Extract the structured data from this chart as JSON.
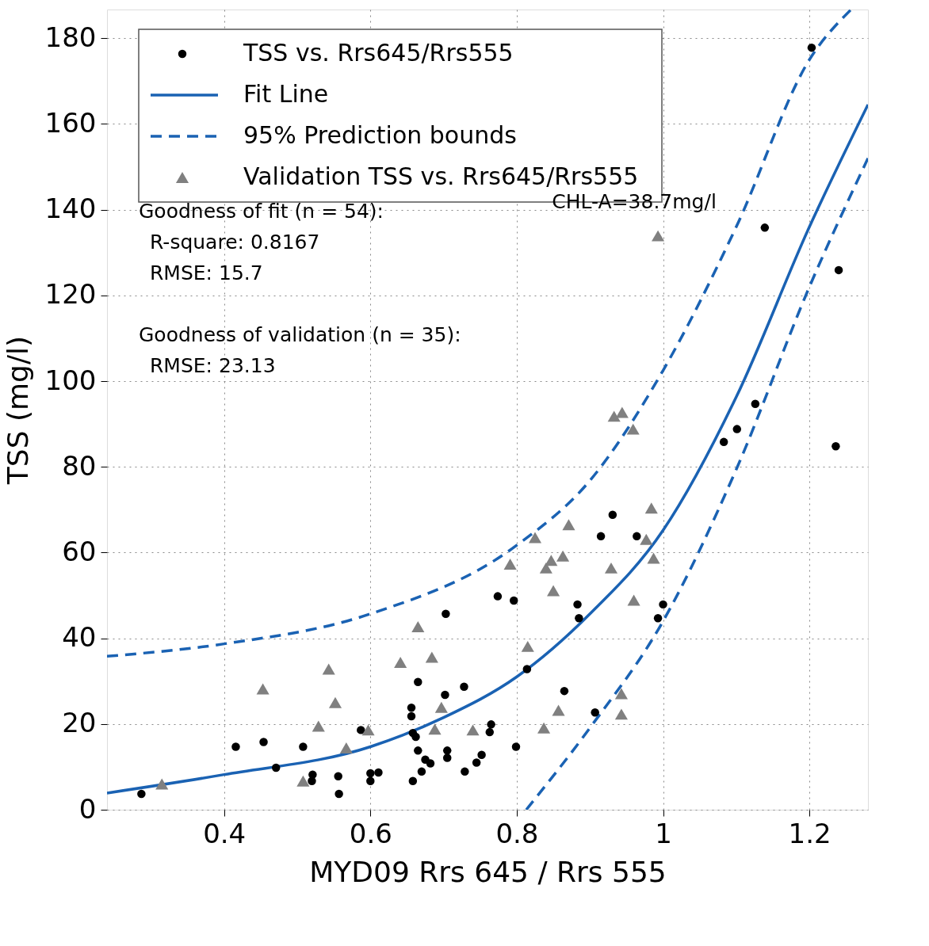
{
  "chart_data": {
    "type": "scatter",
    "xlabel": "MYD09 Rrs 645 / Rrs 555",
    "ylabel": "TSS (mg/l)",
    "xlim": [
      0.24,
      1.28
    ],
    "ylim": [
      0,
      186.7
    ],
    "xticks": [
      0.4,
      0.6,
      0.8,
      1,
      1.2
    ],
    "yticks": [
      0,
      20,
      40,
      60,
      80,
      100,
      120,
      140,
      160,
      180
    ],
    "grid": true,
    "legend": "top left",
    "series": [
      {
        "name": "TSS vs. Rrs645/Rrs555",
        "marker": "circle",
        "color": "#000000",
        "x": [
          0.287,
          0.416,
          0.454,
          0.471,
          0.508,
          0.521,
          0.52,
          0.556,
          0.557,
          0.587,
          0.6,
          0.6,
          0.611,
          0.656,
          0.656,
          0.658,
          0.662,
          0.658,
          0.665,
          0.665,
          0.67,
          0.675,
          0.682,
          0.702,
          0.703,
          0.705,
          0.705,
          0.728,
          0.729,
          0.745,
          0.752,
          0.763,
          0.765,
          0.774,
          0.796,
          0.799,
          0.814,
          0.865,
          0.883,
          0.885,
          0.907,
          0.915,
          0.931,
          0.964,
          0.993,
          1.0,
          1.083,
          1.101,
          1.126,
          1.139,
          1.203,
          1.236,
          1.24
        ],
        "values": [
          3.7,
          14.7,
          15.8,
          9.8,
          14.7,
          8.2,
          6.7,
          7.8,
          3.7,
          18.6,
          8.5,
          6.7,
          8.7,
          23.8,
          21.8,
          17.9,
          17.0,
          6.7,
          29.8,
          13.8,
          8.9,
          11.7,
          10.8,
          26.8,
          45.7,
          13.8,
          12.1,
          28.7,
          8.9,
          11.0,
          12.8,
          18.1,
          19.9,
          49.8,
          48.8,
          14.7,
          32.8,
          27.7,
          47.9,
          44.7,
          22.7,
          63.8,
          68.8,
          63.8,
          44.7,
          47.9,
          85.8,
          88.8,
          94.7,
          135.8,
          177.8,
          84.8,
          125.9
        ]
      },
      {
        "name": "Fit Line",
        "type": "line",
        "line_style": "solid",
        "color": "#1a62b3",
        "x": [
          0.24,
          0.4,
          0.6,
          0.7,
          0.8,
          0.9,
          1.0,
          1.1,
          1.2,
          1.28
        ],
        "values": [
          3.9,
          8.2,
          14.7,
          21.5,
          31.0,
          45.7,
          65.2,
          96.3,
          136,
          164.5
        ]
      },
      {
        "name": "95% Prediction bounds",
        "type": "line",
        "line_style": "dashed",
        "color": "#1a62b3",
        "x": [
          0.24,
          0.4,
          0.6,
          0.8,
          0.9,
          1.0,
          1.1,
          1.2,
          1.257
        ],
        "values": [
          35.8,
          38.7,
          45.7,
          61.7,
          76.8,
          102.5,
          136,
          175,
          186.7
        ]
      },
      {
        "type": "line",
        "line_style": "dashed",
        "color": "#1a62b3",
        "x": [
          0.813,
          0.9,
          1.0,
          1.1,
          1.2,
          1.28
        ],
        "values": [
          0,
          19.1,
          44,
          79.4,
          122,
          152
        ]
      },
      {
        "name": "Validation TSS vs. Rrs645/Rrs555",
        "marker": "triangle",
        "color": "#808080",
        "x": [
          0.315,
          0.453,
          0.508,
          0.529,
          0.543,
          0.552,
          0.567,
          0.597,
          0.641,
          0.665,
          0.684,
          0.688,
          0.697,
          0.74,
          0.791,
          0.815,
          0.825,
          0.837,
          0.84,
          0.847,
          0.85,
          0.857,
          0.863,
          0.871,
          0.929,
          0.933,
          0.944,
          0.943,
          0.943,
          0.959,
          0.96,
          0.977,
          0.984,
          0.987,
          0.993
        ],
        "values": [
          6.0,
          28.2,
          6.7,
          19.5,
          32.8,
          25.0,
          14.4,
          18.6,
          34.4,
          42.7,
          35.6,
          18.8,
          23.9,
          18.6,
          57.3,
          38.1,
          63.5,
          19.1,
          56.4,
          58.2,
          51.1,
          23.2,
          59.2,
          66.5,
          56.4,
          91.8,
          92.7,
          27.1,
          22.3,
          88.8,
          48.9,
          63.1,
          70.4,
          58.7,
          133.9
        ]
      }
    ],
    "annotations": [
      {
        "text": "CHL-A=38.7mg/l",
        "x": 0.993,
        "y": 133.9
      },
      "Goodness of fit (n = 54):",
      "R-square: 0.8167",
      "RMSE: 15.7",
      "Goodness of validation (n = 35):",
      "RMSE: 23.13"
    ]
  }
}
